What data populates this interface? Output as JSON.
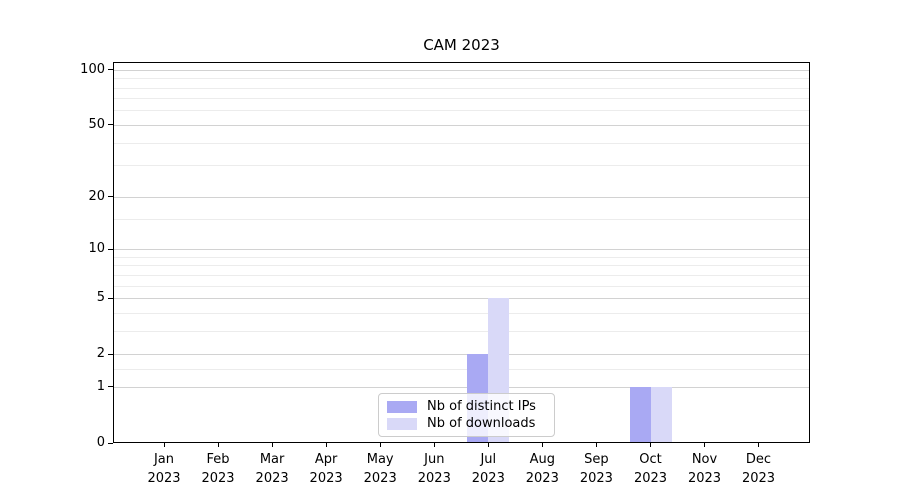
{
  "chart_data": {
    "type": "bar",
    "title": "CAM 2023",
    "categories": [
      "Jan 2023",
      "Feb 2023",
      "Mar 2023",
      "Apr 2023",
      "May 2023",
      "Jun 2023",
      "Jul 2023",
      "Aug 2023",
      "Sep 2023",
      "Oct 2023",
      "Nov 2023",
      "Dec 2023"
    ],
    "series": [
      {
        "name": "Nb of distinct IPs",
        "color": "#a9a9f3",
        "values": [
          0,
          0,
          0,
          0,
          0,
          0,
          2,
          0,
          0,
          1,
          0,
          0
        ]
      },
      {
        "name": "Nb of downloads",
        "color": "#d9d9f8",
        "values": [
          0,
          0,
          0,
          0,
          0,
          0,
          5,
          0,
          0,
          1,
          0,
          0
        ]
      }
    ],
    "xlabel": "",
    "ylabel": "",
    "yscale": "log1p",
    "ylim": [
      0,
      110
    ],
    "yticks": [
      0,
      1,
      2,
      5,
      10,
      20,
      50,
      100
    ],
    "y_minor_gridlines": [
      1.5,
      3,
      4,
      6,
      7,
      8,
      9,
      15,
      30,
      40,
      60,
      70,
      80,
      90
    ],
    "grid": "horizontal",
    "legend_position": "lower center"
  }
}
